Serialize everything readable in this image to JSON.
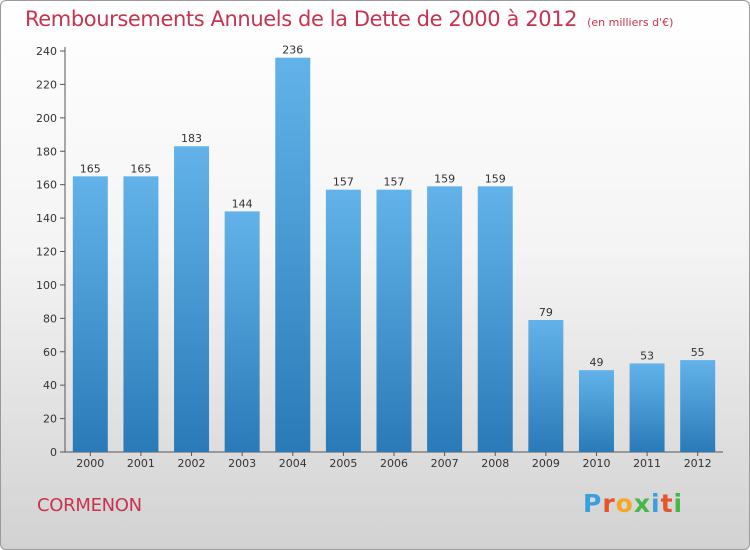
{
  "title": "Remboursements Annuels de la Dette de 2000 à 2012",
  "subtitle": "(en milliers d'€)",
  "commune": "CORMENON",
  "logo": {
    "text": "Proxiti",
    "letter_colors": [
      "#3aa0dc",
      "#e8542a",
      "#f5a623",
      "#4ab548",
      "#3aa0dc",
      "#e8542a",
      "#4ab548"
    ]
  },
  "colors": {
    "title": "#c8334f",
    "bar_top": "#63b3ea",
    "bar_bottom": "#2a7ab8"
  },
  "chart_data": {
    "type": "bar",
    "categories": [
      "2000",
      "2001",
      "2002",
      "2003",
      "2004",
      "2005",
      "2006",
      "2007",
      "2008",
      "2009",
      "2010",
      "2011",
      "2012"
    ],
    "values": [
      165,
      165,
      183,
      144,
      236,
      157,
      157,
      159,
      159,
      79,
      49,
      53,
      55
    ],
    "ylim": [
      0,
      240
    ],
    "yticks": [
      0,
      20,
      40,
      60,
      80,
      100,
      120,
      140,
      160,
      180,
      200,
      220,
      240
    ],
    "grid": false,
    "legend": "none"
  }
}
